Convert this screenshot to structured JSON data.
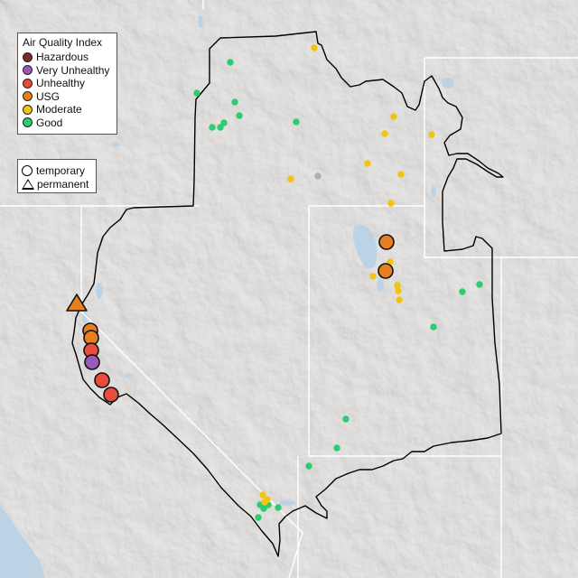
{
  "legend": {
    "title": "Air Quality Index",
    "categories": [
      {
        "key": "hazardous",
        "label": "Hazardous",
        "color": "#7e2a26"
      },
      {
        "key": "very_unhealthy",
        "label": "Very Unhealthy",
        "color": "#9b59b6"
      },
      {
        "key": "unhealthy",
        "label": "Unhealthy",
        "color": "#e74c3c"
      },
      {
        "key": "usg",
        "label": "USG",
        "color": "#e67e22"
      },
      {
        "key": "moderate",
        "label": "Moderate",
        "color": "#f1c40f"
      },
      {
        "key": "good",
        "label": "Good",
        "color": "#2ecc71"
      }
    ]
  },
  "shape_legend": {
    "temporary": "temporary",
    "permanent": "permanent"
  },
  "colors": {
    "land": "#e8e6e4",
    "water": "#bcd3e6",
    "boundary": "#000000",
    "state_lines": "#ffffff",
    "no_data": "#b0b0b0"
  }
}
